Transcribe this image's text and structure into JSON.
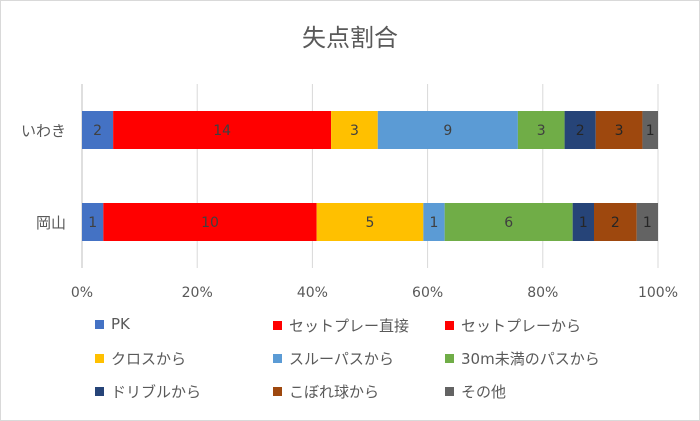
{
  "chart_data": {
    "type": "bar",
    "orientation": "horizontal",
    "stacked": "percent",
    "title": "失点割合",
    "categories": [
      "いわき",
      "岡山"
    ],
    "series": [
      {
        "name": "PK",
        "color": "#4472C4",
        "values": [
          2,
          1
        ]
      },
      {
        "name": "セットプレー直接",
        "color": "#FF0000",
        "values": [
          14,
          10
        ]
      },
      {
        "name": "セットプレーから",
        "color": "#FF0000",
        "values": [
          0,
          0
        ]
      },
      {
        "name": "クロスから",
        "color": "#FFC000",
        "values": [
          3,
          5
        ]
      },
      {
        "name": "スルーパスから",
        "color": "#5B9BD5",
        "values": [
          9,
          1
        ]
      },
      {
        "name": "30m未満のパスから",
        "color": "#70AD47",
        "values": [
          3,
          6
        ]
      },
      {
        "name": "ドリブルから",
        "color": "#264478",
        "values": [
          2,
          1
        ]
      },
      {
        "name": "こぼれ球から",
        "color": "#9E480E",
        "values": [
          3,
          2
        ]
      },
      {
        "name": "その他",
        "color": "#636363",
        "values": [
          1,
          1
        ]
      }
    ],
    "x_ticks": [
      "0%",
      "20%",
      "40%",
      "60%",
      "80%",
      "100%"
    ],
    "xlim": [
      0,
      100
    ],
    "grid": true,
    "legend_position": "bottom"
  }
}
